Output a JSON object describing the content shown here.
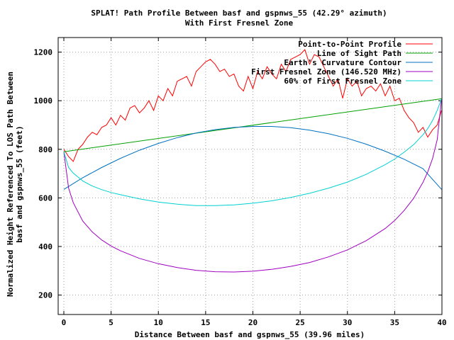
{
  "chart_data": {
    "type": "line",
    "title": "SPLAT! Path Profile Between basf and gspnws_55 (42.29° azimuth)",
    "subtitle": "With First Fresnel Zone",
    "xlabel": "Distance Between basf and gspnws_55 (39.96 miles)",
    "ylabel_line1": "Normalized Height Referenced To LOS Path Between",
    "ylabel_line2": "basf and gspnws_55 (feet)",
    "xlim": [
      -0.6,
      40
    ],
    "ylim": [
      120,
      1260
    ],
    "x_ticks": [
      0,
      5,
      10,
      15,
      20,
      25,
      30,
      35,
      40
    ],
    "y_ticks": [
      200,
      400,
      600,
      800,
      1000,
      1200
    ],
    "grid": true,
    "legend_position": "top-right",
    "series": [
      {
        "name": "Point-to-Point Profile",
        "color": "#ff0000",
        "x": [
          0,
          0.5,
          1,
          1.5,
          2,
          2.5,
          3,
          3.5,
          4,
          4.5,
          5,
          5.5,
          6,
          6.5,
          7,
          7.5,
          8,
          8.5,
          9,
          9.5,
          10,
          10.5,
          11,
          11.5,
          12,
          12.5,
          13,
          13.5,
          14,
          14.5,
          15,
          15.5,
          16,
          16.5,
          17,
          17.5,
          18,
          18.5,
          19,
          19.5,
          20,
          20.5,
          21,
          21.5,
          22,
          22.5,
          23,
          23.5,
          24,
          24.5,
          25,
          25.5,
          26,
          26.5,
          27,
          27.5,
          28,
          28.5,
          29,
          29.5,
          30,
          30.5,
          31,
          31.5,
          32,
          32.5,
          33,
          33.5,
          34,
          34.5,
          35,
          35.5,
          36,
          36.5,
          37,
          37.5,
          38,
          38.5,
          39,
          39.5,
          39.96
        ],
        "y": [
          800,
          770,
          750,
          800,
          820,
          850,
          870,
          860,
          890,
          900,
          930,
          900,
          940,
          920,
          970,
          980,
          950,
          970,
          1000,
          960,
          1020,
          1000,
          1050,
          1020,
          1080,
          1090,
          1100,
          1060,
          1120,
          1140,
          1160,
          1170,
          1150,
          1120,
          1130,
          1100,
          1110,
          1060,
          1040,
          1100,
          1050,
          1120,
          1090,
          1140,
          1110,
          1090,
          1150,
          1120,
          1170,
          1180,
          1190,
          1210,
          1150,
          1190,
          1180,
          1140,
          1100,
          1060,
          1090,
          1010,
          1090,
          1060,
          1080,
          1020,
          1050,
          1060,
          1040,
          1070,
          1020,
          1060,
          1000,
          1010,
          960,
          930,
          910,
          870,
          890,
          850,
          880,
          900,
          960
        ]
      },
      {
        "name": "Line of Sight Path",
        "color": "#00a000",
        "x": [
          0,
          39.96
        ],
        "y": [
          790,
          1008
        ]
      },
      {
        "name": "Earth's Curvature Contour",
        "color": "#0070c0",
        "x": [
          0,
          2,
          4,
          6,
          8,
          10,
          12,
          14,
          16,
          18,
          20,
          22,
          24,
          26,
          28,
          30,
          32,
          34,
          36,
          38,
          39.96
        ],
        "y": [
          635,
          683,
          725,
          763,
          796,
          824,
          848,
          867,
          881,
          890,
          894,
          894,
          889,
          879,
          864,
          845,
          821,
          792,
          759,
          720,
          635
        ]
      },
      {
        "name": "First Fresnel Zone (146.520 MHz)",
        "color": "#a000c0",
        "x": [
          0,
          0.5,
          1,
          2,
          3,
          4,
          5,
          6,
          8,
          10,
          12,
          14,
          16,
          18,
          20,
          22,
          24,
          26,
          28,
          30,
          32,
          34,
          35,
          36,
          37,
          38,
          38.5,
          39,
          39.5,
          39.96
        ],
        "y": [
          790,
          640,
          580,
          505,
          460,
          427,
          402,
          382,
          351,
          329,
          313,
          302,
          296,
          295,
          298,
          306,
          318,
          334,
          357,
          386,
          424,
          474,
          507,
          548,
          598,
          664,
          707,
          761,
          839,
          1008
        ]
      },
      {
        "name": "60% of First Fresnel Zone",
        "color": "#00d0d0",
        "x": [
          0,
          0.5,
          1,
          2,
          3,
          4,
          5,
          6,
          8,
          10,
          12,
          14,
          16,
          18,
          20,
          22,
          24,
          26,
          28,
          30,
          32,
          34,
          35,
          36,
          37,
          38,
          38.5,
          39,
          39.5,
          39.96
        ],
        "y": [
          790,
          725,
          702,
          670,
          649,
          634,
          622,
          613,
          596,
          583,
          574,
          568,
          568,
          571,
          578,
          588,
          602,
          619,
          640,
          665,
          697,
          737,
          760,
          788,
          819,
          860,
          885,
          918,
          960,
          1008
        ]
      }
    ]
  }
}
